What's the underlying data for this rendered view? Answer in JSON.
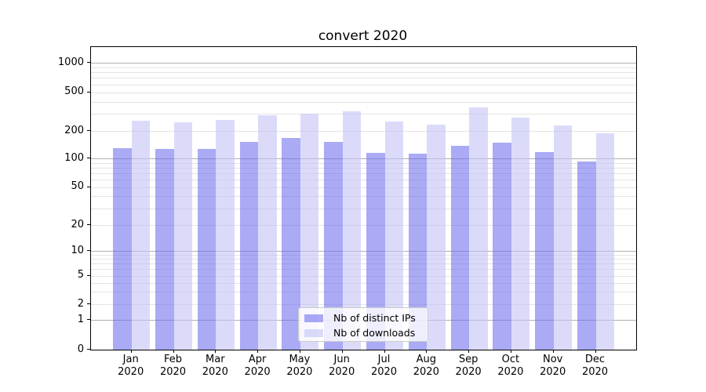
{
  "title": "convert 2020",
  "chart_data": {
    "type": "bar",
    "title": "convert 2020",
    "categories": [
      "Jan",
      "Feb",
      "Mar",
      "Apr",
      "May",
      "Jun",
      "Jul",
      "Aug",
      "Sep",
      "Oct",
      "Nov",
      "Dec"
    ],
    "x_tick_second_line": "2020",
    "series": [
      {
        "name": "Nb of distinct IPs",
        "color": "rgba(100,100,237,0.55)",
        "values": [
          130,
          127,
          126,
          152,
          167,
          153,
          116,
          113,
          137,
          149,
          118,
          92
        ]
      },
      {
        "name": "Nb of downloads",
        "color": "rgba(195,195,245,0.6)",
        "values": [
          255,
          245,
          260,
          290,
          300,
          320,
          250,
          230,
          350,
          272,
          227,
          190
        ]
      }
    ],
    "yscale": "log-like with zero baseline",
    "y_ticks": [
      0,
      1,
      2,
      5,
      10,
      20,
      50,
      100,
      200,
      500,
      1000
    ],
    "y_minor_ticks": [
      3,
      4,
      6,
      7,
      8,
      9,
      30,
      40,
      60,
      70,
      80,
      90,
      300,
      400,
      600,
      700,
      800,
      900
    ],
    "ylim": [
      0,
      1500
    ],
    "grid": "both",
    "legend_position": "lower center",
    "major_grid_color": "#b1b1b1",
    "minor_grid_color": "#e4e4e4"
  }
}
